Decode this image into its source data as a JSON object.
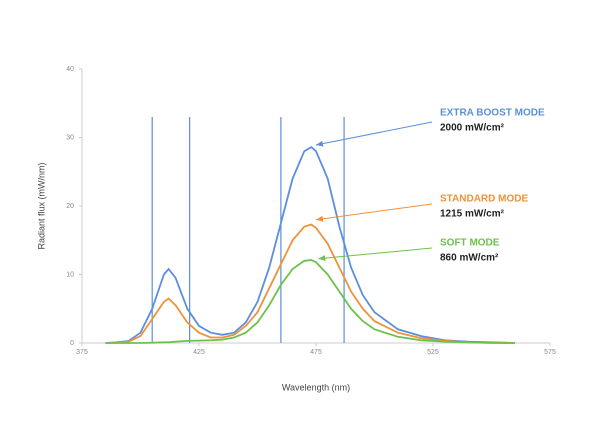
{
  "chart_data": {
    "type": "line",
    "x_label": "Wavelength (nm)",
    "y_label": "Radiant flux (mW/nm)",
    "xlim": [
      375,
      575
    ],
    "xticks": [
      375,
      425,
      475,
      525,
      575
    ],
    "ylim": [
      0,
      40
    ],
    "yticks": [
      0,
      10,
      20,
      30,
      40
    ],
    "x": [
      385,
      390,
      395,
      400,
      405,
      410,
      412,
      415,
      420,
      425,
      430,
      435,
      440,
      445,
      450,
      455,
      460,
      465,
      470,
      473,
      475,
      480,
      485,
      490,
      495,
      500,
      510,
      520,
      530,
      540,
      550,
      560
    ],
    "series": [
      {
        "name": "EXTRA BOOST MODE",
        "color": "#5b8fdb",
        "values": [
          0,
          0.1,
          0.3,
          1.5,
          5,
          10,
          10.8,
          9.5,
          5,
          2.5,
          1.5,
          1.2,
          1.5,
          3,
          6,
          11,
          17.5,
          24,
          28,
          28.6,
          28,
          24,
          17,
          11,
          7,
          4.5,
          2,
          1,
          0.4,
          0.2,
          0.1,
          0
        ]
      },
      {
        "name": "STANDARD MODE",
        "color": "#f0923a",
        "values": [
          0,
          0.05,
          0.2,
          1,
          3.5,
          6,
          6.5,
          5.5,
          3,
          1.5,
          0.8,
          0.8,
          1.2,
          2.5,
          4.5,
          8,
          11.5,
          15,
          17,
          17.3,
          16.8,
          14.5,
          11,
          7.5,
          5,
          3.2,
          1.5,
          0.7,
          0.3,
          0.1,
          0.05,
          0
        ]
      },
      {
        "name": "SOFT MODE",
        "color": "#6cc24a",
        "values": [
          0,
          0,
          0,
          0,
          0.05,
          0.1,
          0.1,
          0.2,
          0.3,
          0.35,
          0.4,
          0.5,
          0.8,
          1.5,
          3,
          5.5,
          8.5,
          10.8,
          12,
          12.1,
          11.8,
          10,
          7.5,
          5,
          3.2,
          2,
          0.9,
          0.4,
          0.2,
          0.1,
          0,
          0
        ]
      }
    ],
    "vlines": [
      405,
      421,
      460,
      487
    ],
    "vline_color": "#5b8fdb",
    "annotations": [
      {
        "series": 0,
        "text": "2000 mW/cm²",
        "x": 475,
        "y": 28.9
      },
      {
        "series": 1,
        "text": "1215 mW/cm²",
        "x": 475,
        "y": 18
      },
      {
        "series": 2,
        "text": "860 mW/cm²",
        "x": 476,
        "y": 12.3
      }
    ]
  }
}
